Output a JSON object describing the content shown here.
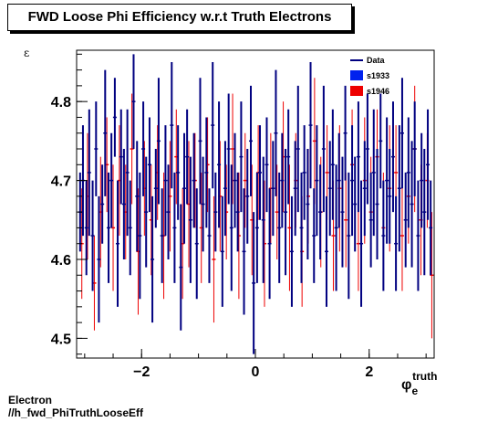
{
  "page_title": "FWD Loose Phi Efficiency w.r.t Truth Electrons",
  "footer": {
    "line1": "Electron",
    "line2": "//h_fwd_PhiTruthLooseEff"
  },
  "colors": {
    "data": "#000080",
    "s1933": "#0022ee",
    "s1946": "#ee0000",
    "axis": "#000000"
  },
  "chart_data": {
    "type": "scatter",
    "title": "FWD Loose Phi Efficiency w.r.t Truth Electrons",
    "xlabel": "φ_e^truth",
    "ylabel": "ε",
    "xlim": [
      -3.14159,
      3.14159
    ],
    "ylim": [
      4.475,
      4.865
    ],
    "x_ticks": [
      -2,
      0,
      2
    ],
    "y_ticks": [
      4.5,
      4.6,
      4.7,
      4.8
    ],
    "legend": [
      "Data",
      "s1933",
      "s1946"
    ],
    "legend_position": "top-right",
    "grid": false,
    "series": [
      {
        "name": "Data",
        "style": "errorbar",
        "points": [
          [
            -3.08,
            4.66,
            0.05
          ],
          [
            -3.03,
            4.7,
            0.07
          ],
          [
            -2.97,
            4.64,
            0.06
          ],
          [
            -2.92,
            4.71,
            0.08
          ],
          [
            -2.86,
            4.63,
            0.07
          ],
          [
            -2.8,
            4.74,
            0.06
          ],
          [
            -2.75,
            4.6,
            0.08
          ],
          [
            -2.69,
            4.67,
            0.05
          ],
          [
            -2.64,
            4.76,
            0.08
          ],
          [
            -2.58,
            4.64,
            0.07
          ],
          [
            -2.53,
            4.7,
            0.06
          ],
          [
            -2.47,
            4.78,
            0.05
          ],
          [
            -2.42,
            4.62,
            0.08
          ],
          [
            -2.36,
            4.73,
            0.06
          ],
          [
            -2.31,
            4.67,
            0.07
          ],
          [
            -2.25,
            4.71,
            0.08
          ],
          [
            -2.2,
            4.64,
            0.06
          ],
          [
            -2.14,
            4.8,
            0.06
          ],
          [
            -2.08,
            4.68,
            0.07
          ],
          [
            -2.03,
            4.63,
            0.08
          ],
          [
            -1.97,
            4.74,
            0.06
          ],
          [
            -1.92,
            4.66,
            0.07
          ],
          [
            -1.86,
            4.72,
            0.06
          ],
          [
            -1.81,
            4.6,
            0.08
          ],
          [
            -1.75,
            4.69,
            0.05
          ],
          [
            -1.7,
            4.75,
            0.08
          ],
          [
            -1.64,
            4.63,
            0.06
          ],
          [
            -1.58,
            4.7,
            0.07
          ],
          [
            -1.53,
            4.66,
            0.06
          ],
          [
            -1.47,
            4.77,
            0.08
          ],
          [
            -1.42,
            4.64,
            0.07
          ],
          [
            -1.36,
            4.71,
            0.06
          ],
          [
            -1.31,
            4.59,
            0.08
          ],
          [
            -1.25,
            4.69,
            0.07
          ],
          [
            -1.2,
            4.73,
            0.06
          ],
          [
            -1.14,
            4.65,
            0.08
          ],
          [
            -1.08,
            4.7,
            0.06
          ],
          [
            -1.03,
            4.62,
            0.07
          ],
          [
            -0.97,
            4.75,
            0.08
          ],
          [
            -0.92,
            4.67,
            0.06
          ],
          [
            -0.86,
            4.71,
            0.07
          ],
          [
            -0.81,
            4.63,
            0.06
          ],
          [
            -0.75,
            4.77,
            0.08
          ],
          [
            -0.7,
            4.66,
            0.05
          ],
          [
            -0.64,
            4.72,
            0.08
          ],
          [
            -0.58,
            4.61,
            0.07
          ],
          [
            -0.53,
            4.69,
            0.06
          ],
          [
            -0.47,
            4.74,
            0.07
          ],
          [
            -0.42,
            4.64,
            0.08
          ],
          [
            -0.36,
            4.7,
            0.06
          ],
          [
            -0.31,
            4.66,
            0.05
          ],
          [
            -0.25,
            4.73,
            0.07
          ],
          [
            -0.2,
            4.61,
            0.08
          ],
          [
            -0.14,
            4.68,
            0.06
          ],
          [
            -0.08,
            4.75,
            0.07
          ],
          [
            -0.03,
            4.57,
            0.09
          ],
          [
            0.03,
            4.64,
            0.07
          ],
          [
            0.08,
            4.71,
            0.06
          ],
          [
            0.14,
            4.65,
            0.08
          ],
          [
            0.2,
            4.72,
            0.06
          ],
          [
            0.25,
            4.62,
            0.07
          ],
          [
            0.31,
            4.69,
            0.06
          ],
          [
            0.36,
            4.76,
            0.08
          ],
          [
            0.42,
            4.64,
            0.07
          ],
          [
            0.47,
            4.7,
            0.06
          ],
          [
            0.53,
            4.66,
            0.08
          ],
          [
            0.58,
            4.73,
            0.06
          ],
          [
            0.64,
            4.61,
            0.07
          ],
          [
            0.7,
            4.69,
            0.06
          ],
          [
            0.75,
            4.74,
            0.08
          ],
          [
            0.81,
            4.64,
            0.07
          ],
          [
            0.86,
            4.71,
            0.06
          ],
          [
            0.92,
            4.67,
            0.07
          ],
          [
            0.97,
            4.77,
            0.08
          ],
          [
            1.03,
            4.63,
            0.06
          ],
          [
            1.08,
            4.7,
            0.07
          ],
          [
            1.14,
            4.66,
            0.06
          ],
          [
            1.2,
            4.74,
            0.08
          ],
          [
            1.25,
            4.61,
            0.07
          ],
          [
            1.31,
            4.69,
            0.06
          ],
          [
            1.36,
            4.72,
            0.07
          ],
          [
            1.42,
            4.64,
            0.08
          ],
          [
            1.47,
            4.7,
            0.06
          ],
          [
            1.53,
            4.66,
            0.07
          ],
          [
            1.58,
            4.76,
            0.06
          ],
          [
            1.64,
            4.63,
            0.08
          ],
          [
            1.7,
            4.7,
            0.07
          ],
          [
            1.75,
            4.67,
            0.06
          ],
          [
            1.81,
            4.73,
            0.07
          ],
          [
            1.86,
            4.62,
            0.08
          ],
          [
            1.92,
            4.69,
            0.06
          ],
          [
            1.97,
            4.74,
            0.07
          ],
          [
            2.03,
            4.65,
            0.06
          ],
          [
            2.08,
            4.71,
            0.08
          ],
          [
            2.14,
            4.67,
            0.07
          ],
          [
            2.2,
            4.75,
            0.06
          ],
          [
            2.25,
            4.63,
            0.07
          ],
          [
            2.31,
            4.7,
            0.08
          ],
          [
            2.36,
            4.68,
            0.06
          ],
          [
            2.42,
            4.73,
            0.07
          ],
          [
            2.47,
            4.62,
            0.06
          ],
          [
            2.53,
            4.69,
            0.08
          ],
          [
            2.58,
            4.76,
            0.07
          ],
          [
            2.64,
            4.65,
            0.06
          ],
          [
            2.69,
            4.71,
            0.07
          ],
          [
            2.75,
            4.67,
            0.08
          ],
          [
            2.8,
            4.74,
            0.06
          ],
          [
            2.86,
            4.63,
            0.07
          ],
          [
            2.92,
            4.7,
            0.06
          ],
          [
            2.97,
            4.66,
            0.08
          ],
          [
            3.03,
            4.72,
            0.07
          ],
          [
            3.08,
            4.64,
            0.06
          ]
        ]
      },
      {
        "name": "s1946",
        "style": "errorbar",
        "points": [
          [
            -3.05,
            4.62,
            0.07
          ],
          [
            -2.95,
            4.68,
            0.08
          ],
          [
            -2.83,
            4.57,
            0.06
          ],
          [
            -2.72,
            4.66,
            0.07
          ],
          [
            -2.61,
            4.72,
            0.06
          ],
          [
            -2.5,
            4.64,
            0.08
          ],
          [
            -2.39,
            4.7,
            0.07
          ],
          [
            -2.28,
            4.66,
            0.06
          ],
          [
            -2.17,
            4.74,
            0.07
          ],
          [
            -2.06,
            4.61,
            0.08
          ],
          [
            -1.95,
            4.69,
            0.06
          ],
          [
            -1.83,
            4.65,
            0.07
          ],
          [
            -1.72,
            4.71,
            0.06
          ],
          [
            -1.61,
            4.63,
            0.08
          ],
          [
            -1.5,
            4.68,
            0.07
          ],
          [
            -1.39,
            4.73,
            0.06
          ],
          [
            -1.28,
            4.62,
            0.07
          ],
          [
            -1.17,
            4.67,
            0.08
          ],
          [
            -1.06,
            4.7,
            0.06
          ],
          [
            -0.95,
            4.64,
            0.07
          ],
          [
            -0.84,
            4.72,
            0.06
          ],
          [
            -0.73,
            4.6,
            0.08
          ],
          [
            -0.62,
            4.68,
            0.07
          ],
          [
            -0.51,
            4.66,
            0.06
          ],
          [
            -0.4,
            4.74,
            0.07
          ],
          [
            -0.29,
            4.63,
            0.08
          ],
          [
            -0.18,
            4.7,
            0.06
          ],
          [
            -0.06,
            4.65,
            0.07
          ],
          [
            0.05,
            4.71,
            0.06
          ],
          [
            0.16,
            4.62,
            0.08
          ],
          [
            0.27,
            4.69,
            0.07
          ],
          [
            0.38,
            4.66,
            0.06
          ],
          [
            0.49,
            4.73,
            0.07
          ],
          [
            0.6,
            4.64,
            0.08
          ],
          [
            0.71,
            4.7,
            0.06
          ],
          [
            0.82,
            4.61,
            0.07
          ],
          [
            0.93,
            4.68,
            0.06
          ],
          [
            1.04,
            4.75,
            0.08
          ],
          [
            1.15,
            4.66,
            0.07
          ],
          [
            1.26,
            4.71,
            0.06
          ],
          [
            1.37,
            4.63,
            0.07
          ],
          [
            1.48,
            4.69,
            0.08
          ],
          [
            1.59,
            4.65,
            0.06
          ],
          [
            1.7,
            4.72,
            0.07
          ],
          [
            1.81,
            4.62,
            0.06
          ],
          [
            1.92,
            4.7,
            0.08
          ],
          [
            2.03,
            4.66,
            0.07
          ],
          [
            2.14,
            4.73,
            0.06
          ],
          [
            2.25,
            4.64,
            0.07
          ],
          [
            2.36,
            4.69,
            0.08
          ],
          [
            2.47,
            4.71,
            0.06
          ],
          [
            2.58,
            4.63,
            0.07
          ],
          [
            2.69,
            4.68,
            0.06
          ],
          [
            2.8,
            4.74,
            0.08
          ],
          [
            2.91,
            4.65,
            0.07
          ],
          [
            3.02,
            4.7,
            0.06
          ],
          [
            3.1,
            4.58,
            0.08
          ]
        ]
      }
    ]
  }
}
